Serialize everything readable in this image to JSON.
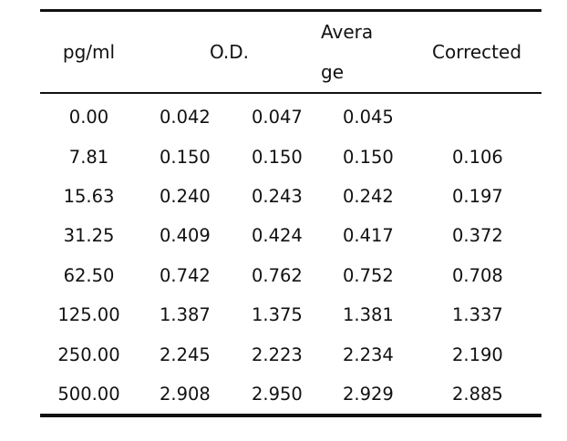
{
  "table": {
    "headers": {
      "pg": "pg/ml",
      "od": "O.D.",
      "average_line1": "Avera",
      "average_line2": "ge",
      "corrected": "Corrected"
    },
    "rows": [
      {
        "pg": "0.00",
        "od1": "0.042",
        "od2": "0.047",
        "avg": "0.045",
        "corr": ""
      },
      {
        "pg": "7.81",
        "od1": "0.150",
        "od2": "0.150",
        "avg": "0.150",
        "corr": "0.106"
      },
      {
        "pg": "15.63",
        "od1": "0.240",
        "od2": "0.243",
        "avg": "0.242",
        "corr": "0.197"
      },
      {
        "pg": "31.25",
        "od1": "0.409",
        "od2": "0.424",
        "avg": "0.417",
        "corr": "0.372"
      },
      {
        "pg": "62.50",
        "od1": "0.742",
        "od2": "0.762",
        "avg": "0.752",
        "corr": "0.708"
      },
      {
        "pg": "125.00",
        "od1": "1.387",
        "od2": "1.375",
        "avg": "1.381",
        "corr": "1.337"
      },
      {
        "pg": "250.00",
        "od1": "2.245",
        "od2": "2.223",
        "avg": "2.234",
        "corr": "2.190"
      },
      {
        "pg": "500.00",
        "od1": "2.908",
        "od2": "2.950",
        "avg": "2.929",
        "corr": "2.885"
      }
    ]
  }
}
